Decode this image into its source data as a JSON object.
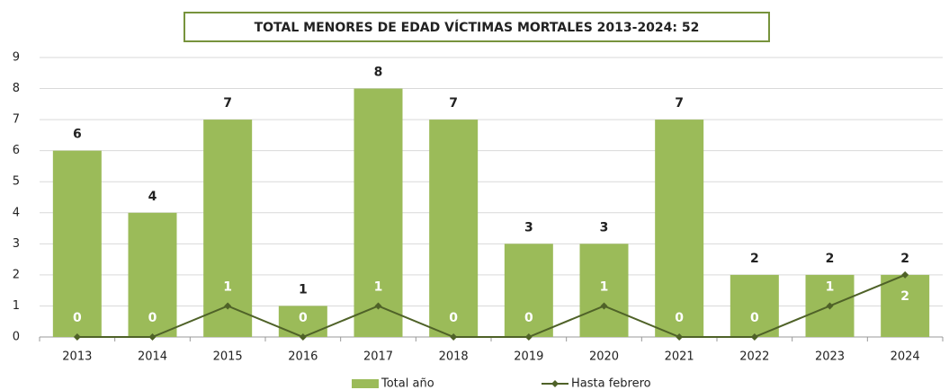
{
  "chart_data": {
    "type": "bar",
    "title": "TOTAL MENORES DE EDAD VÍCTIMAS MORTALES 2013-2024: 52",
    "categories": [
      "2013",
      "2014",
      "2015",
      "2016",
      "2017",
      "2018",
      "2019",
      "2020",
      "2021",
      "2022",
      "2023",
      "2024"
    ],
    "series": [
      {
        "name": "Total año",
        "type": "bar",
        "color": "#9bbb59",
        "values": [
          6,
          4,
          7,
          1,
          8,
          7,
          3,
          3,
          7,
          2,
          2,
          2
        ]
      },
      {
        "name": "Hasta febrero",
        "type": "line",
        "color": "#4f6228",
        "values": [
          0,
          0,
          1,
          0,
          1,
          0,
          0,
          1,
          0,
          0,
          1,
          2
        ]
      }
    ],
    "ylim": [
      0,
      9
    ],
    "yticks": [
      0,
      1,
      2,
      3,
      4,
      5,
      6,
      7,
      8,
      9
    ],
    "grid": true,
    "legend": "bottom"
  }
}
